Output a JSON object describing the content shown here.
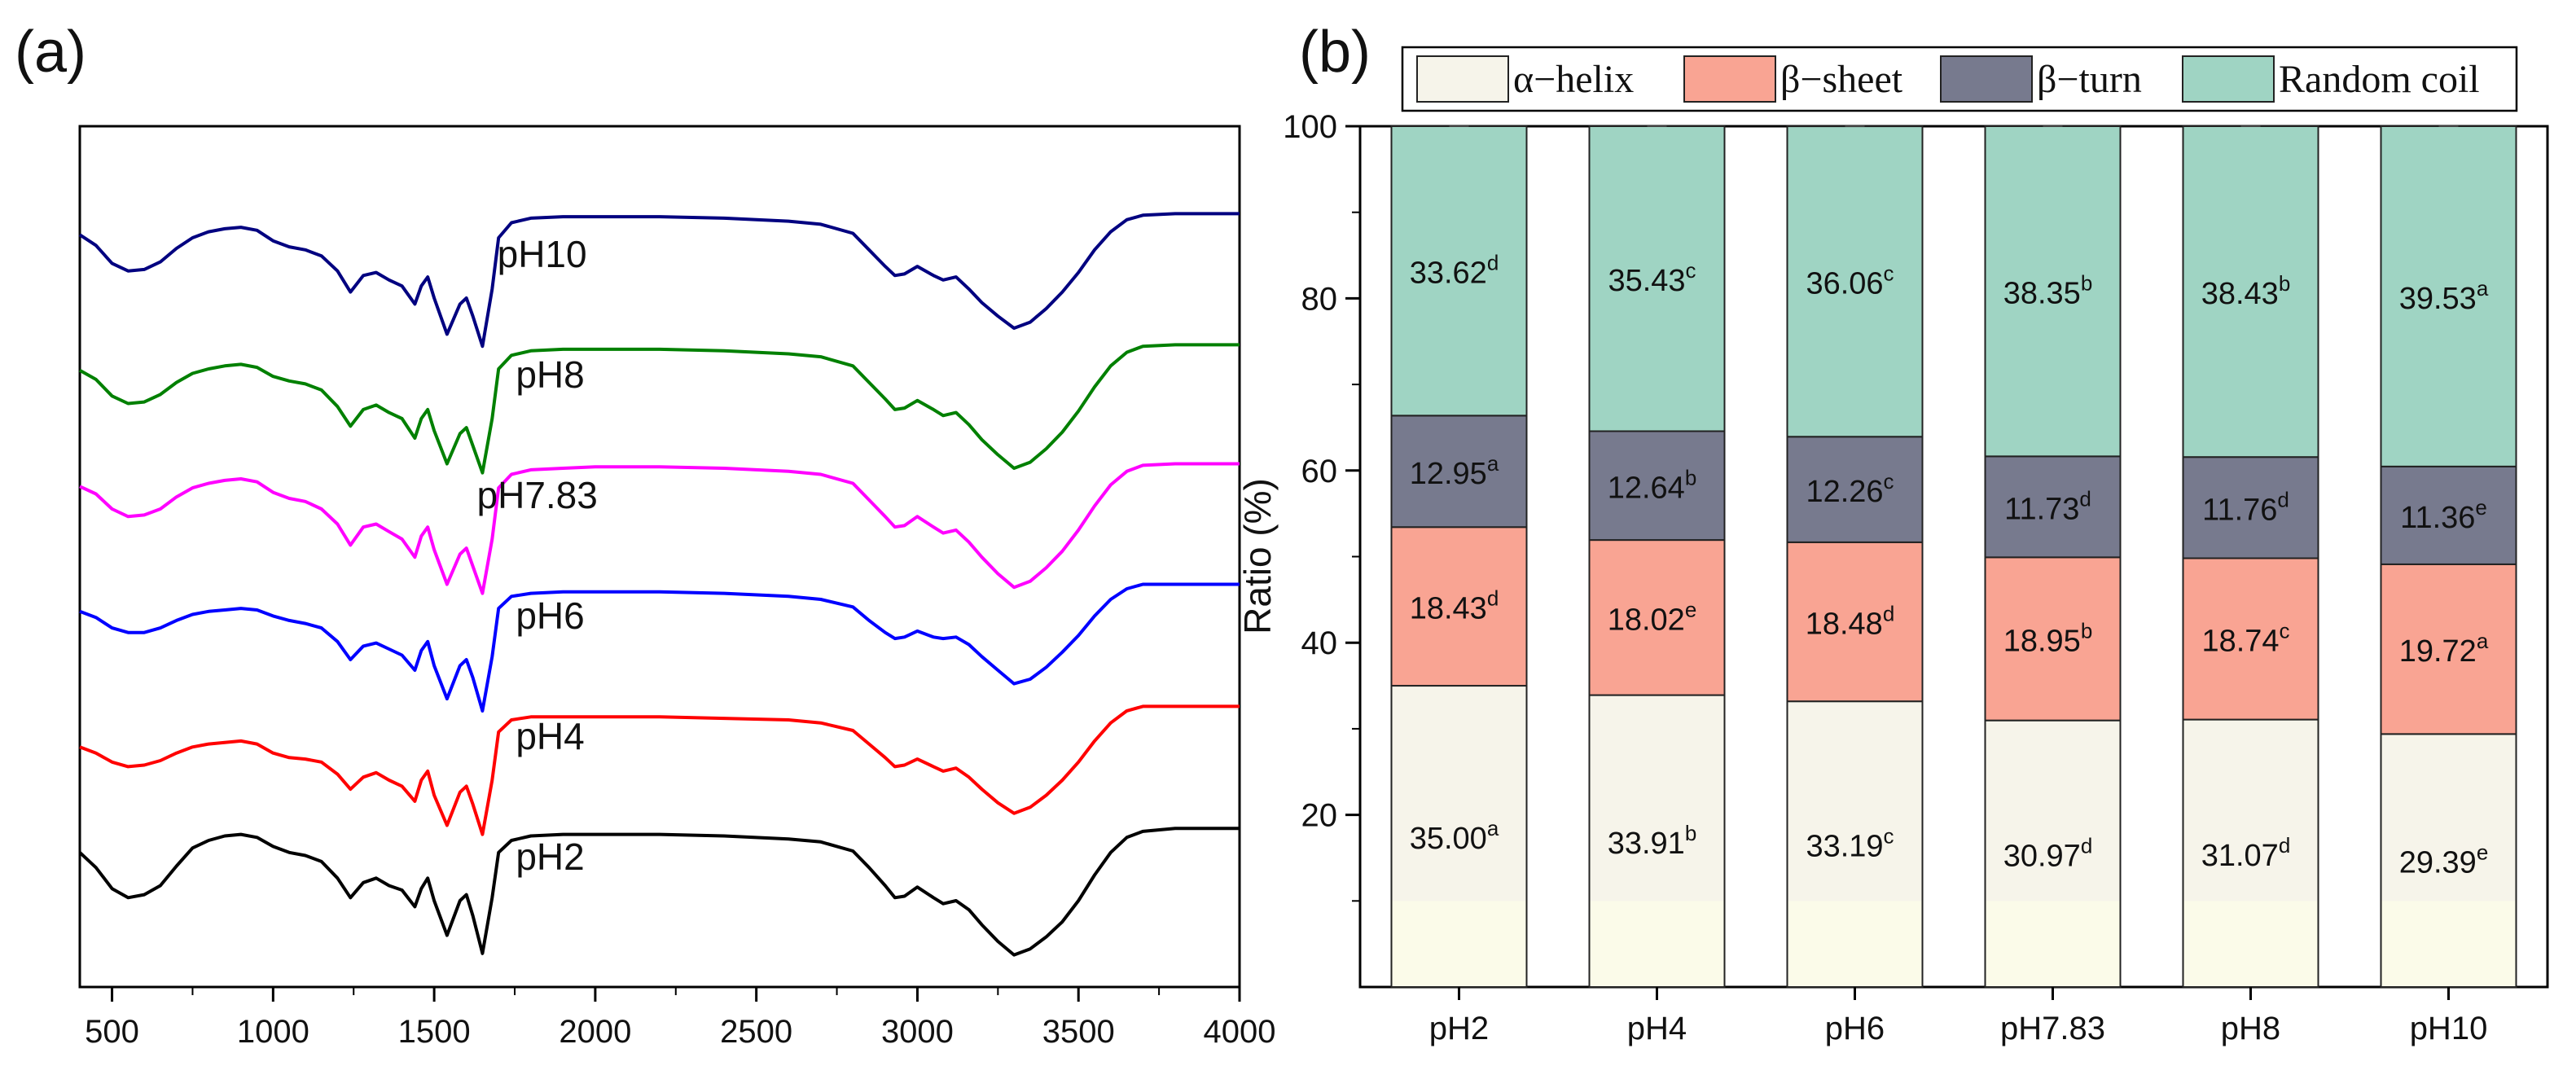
{
  "chart_data": [
    {
      "type": "line",
      "panel_label": "(a)",
      "title": "",
      "xlabel": "",
      "ylabel": "",
      "xlim": [
        400,
        4000
      ],
      "x_ticks": [
        500,
        1000,
        1500,
        2000,
        2500,
        3000,
        3500,
        4000
      ],
      "y_ticks_shown": false,
      "description_note": "FTIR spectra stacked with vertical offsets; values are normalized transmittance (0-1) read from the curve shapes",
      "baseline_offsets": {
        "pH2": 0.0,
        "pH4": 1.0,
        "pH6": 2.0,
        "pH7.83": 3.0,
        "pH8": 4.0,
        "pH10": 5.0
      },
      "x": [
        400,
        450,
        500,
        550,
        600,
        650,
        700,
        750,
        800,
        850,
        900,
        950,
        1000,
        1050,
        1100,
        1150,
        1200,
        1240,
        1280,
        1320,
        1360,
        1400,
        1440,
        1460,
        1480,
        1500,
        1540,
        1580,
        1600,
        1620,
        1650,
        1680,
        1700,
        1740,
        1800,
        1900,
        2000,
        2200,
        2400,
        2600,
        2700,
        2800,
        2850,
        2900,
        2930,
        2960,
        3000,
        3050,
        3080,
        3120,
        3160,
        3200,
        3250,
        3300,
        3350,
        3400,
        3450,
        3500,
        3550,
        3600,
        3650,
        3700,
        3800,
        3900,
        4000
      ],
      "series": [
        {
          "name": "pH2",
          "label": "pH2",
          "color": "#000000",
          "values": [
            0.72,
            0.62,
            0.48,
            0.42,
            0.44,
            0.5,
            0.63,
            0.75,
            0.8,
            0.83,
            0.84,
            0.82,
            0.76,
            0.72,
            0.7,
            0.66,
            0.55,
            0.42,
            0.52,
            0.55,
            0.5,
            0.47,
            0.36,
            0.48,
            0.55,
            0.4,
            0.17,
            0.4,
            0.44,
            0.3,
            0.05,
            0.42,
            0.72,
            0.8,
            0.83,
            0.84,
            0.84,
            0.84,
            0.83,
            0.81,
            0.79,
            0.73,
            0.62,
            0.5,
            0.42,
            0.43,
            0.49,
            0.42,
            0.38,
            0.4,
            0.34,
            0.24,
            0.13,
            0.04,
            0.08,
            0.16,
            0.26,
            0.4,
            0.57,
            0.72,
            0.82,
            0.86,
            0.88,
            0.88,
            0.88
          ]
        },
        {
          "name": "pH4",
          "label": "pH4",
          "color": "#ff0000",
          "values": [
            0.62,
            0.58,
            0.52,
            0.49,
            0.5,
            0.53,
            0.58,
            0.62,
            0.64,
            0.65,
            0.66,
            0.64,
            0.58,
            0.55,
            0.54,
            0.52,
            0.44,
            0.34,
            0.42,
            0.45,
            0.4,
            0.36,
            0.26,
            0.4,
            0.46,
            0.3,
            0.1,
            0.32,
            0.36,
            0.24,
            0.04,
            0.4,
            0.72,
            0.8,
            0.82,
            0.82,
            0.82,
            0.82,
            0.81,
            0.8,
            0.78,
            0.73,
            0.64,
            0.55,
            0.49,
            0.5,
            0.54,
            0.49,
            0.46,
            0.48,
            0.42,
            0.34,
            0.25,
            0.18,
            0.22,
            0.3,
            0.4,
            0.52,
            0.66,
            0.78,
            0.86,
            0.89,
            0.89,
            0.89,
            0.89
          ]
        },
        {
          "name": "pH6",
          "label": "pH6",
          "color": "#0000ff",
          "values": [
            0.72,
            0.68,
            0.61,
            0.58,
            0.58,
            0.61,
            0.66,
            0.7,
            0.72,
            0.73,
            0.74,
            0.73,
            0.69,
            0.66,
            0.64,
            0.61,
            0.52,
            0.4,
            0.49,
            0.51,
            0.47,
            0.43,
            0.33,
            0.46,
            0.52,
            0.36,
            0.14,
            0.36,
            0.4,
            0.28,
            0.06,
            0.42,
            0.74,
            0.82,
            0.84,
            0.85,
            0.85,
            0.85,
            0.84,
            0.82,
            0.8,
            0.75,
            0.66,
            0.58,
            0.54,
            0.55,
            0.59,
            0.55,
            0.54,
            0.55,
            0.5,
            0.42,
            0.33,
            0.24,
            0.27,
            0.35,
            0.45,
            0.56,
            0.69,
            0.8,
            0.87,
            0.9,
            0.9,
            0.9,
            0.9
          ]
        },
        {
          "name": "pH7.83",
          "label": "pH7.83",
          "color": "#ff00ff",
          "values": [
            0.75,
            0.7,
            0.6,
            0.55,
            0.56,
            0.6,
            0.68,
            0.74,
            0.77,
            0.79,
            0.8,
            0.78,
            0.71,
            0.67,
            0.65,
            0.6,
            0.5,
            0.36,
            0.48,
            0.5,
            0.45,
            0.4,
            0.28,
            0.42,
            0.48,
            0.33,
            0.1,
            0.3,
            0.34,
            0.22,
            0.04,
            0.4,
            0.74,
            0.83,
            0.86,
            0.87,
            0.88,
            0.88,
            0.87,
            0.85,
            0.83,
            0.77,
            0.66,
            0.55,
            0.48,
            0.49,
            0.55,
            0.48,
            0.44,
            0.46,
            0.38,
            0.28,
            0.17,
            0.08,
            0.12,
            0.21,
            0.32,
            0.46,
            0.62,
            0.76,
            0.85,
            0.89,
            0.9,
            0.9,
            0.9
          ]
        },
        {
          "name": "pH8",
          "label": "pH8",
          "color": "#008000",
          "values": [
            0.72,
            0.66,
            0.55,
            0.5,
            0.51,
            0.56,
            0.64,
            0.7,
            0.73,
            0.75,
            0.76,
            0.74,
            0.68,
            0.65,
            0.63,
            0.59,
            0.48,
            0.35,
            0.46,
            0.49,
            0.44,
            0.4,
            0.27,
            0.4,
            0.46,
            0.32,
            0.1,
            0.3,
            0.34,
            0.22,
            0.04,
            0.4,
            0.73,
            0.82,
            0.85,
            0.86,
            0.86,
            0.86,
            0.85,
            0.83,
            0.81,
            0.75,
            0.64,
            0.53,
            0.46,
            0.47,
            0.52,
            0.46,
            0.42,
            0.44,
            0.36,
            0.26,
            0.16,
            0.07,
            0.11,
            0.2,
            0.31,
            0.45,
            0.61,
            0.75,
            0.84,
            0.88,
            0.89,
            0.89,
            0.89
          ]
        },
        {
          "name": "pH10",
          "label": "pH10",
          "color": "#000080",
          "values": [
            0.82,
            0.75,
            0.63,
            0.58,
            0.59,
            0.64,
            0.73,
            0.8,
            0.84,
            0.86,
            0.87,
            0.85,
            0.78,
            0.74,
            0.72,
            0.68,
            0.58,
            0.44,
            0.55,
            0.57,
            0.52,
            0.48,
            0.36,
            0.48,
            0.54,
            0.4,
            0.16,
            0.36,
            0.4,
            0.28,
            0.08,
            0.46,
            0.8,
            0.9,
            0.93,
            0.94,
            0.94,
            0.94,
            0.93,
            0.91,
            0.89,
            0.83,
            0.72,
            0.61,
            0.55,
            0.56,
            0.61,
            0.55,
            0.52,
            0.54,
            0.46,
            0.37,
            0.28,
            0.2,
            0.24,
            0.33,
            0.44,
            0.57,
            0.72,
            0.84,
            0.92,
            0.95,
            0.96,
            0.96,
            0.96
          ]
        }
      ]
    },
    {
      "type": "bar",
      "stacked": true,
      "panel_label": "(b)",
      "title": "",
      "xlabel": "",
      "ylabel": "Ratio (%)",
      "ylim": [
        0,
        100
      ],
      "y_ticks": [
        20,
        40,
        60,
        80,
        100
      ],
      "legend_position": "top",
      "categories": [
        "pH2",
        "pH4",
        "pH6",
        "pH7.83",
        "pH8",
        "pH10"
      ],
      "series": [
        {
          "name": "α−helix",
          "color": "#f6f4ea",
          "values": [
            35.0,
            33.91,
            33.19,
            30.97,
            31.07,
            29.39
          ],
          "labels": [
            "35.00",
            "33.91",
            "33.19",
            "30.97",
            "31.07",
            "29.39"
          ],
          "sig": [
            "a",
            "b",
            "c",
            "d",
            "d",
            "e"
          ]
        },
        {
          "name": "β−sheet",
          "color": "#f9a493",
          "values": [
            18.43,
            18.02,
            18.48,
            18.95,
            18.74,
            19.72
          ],
          "labels": [
            "18.43",
            "18.02",
            "18.48",
            "18.95",
            "18.74",
            "19.72"
          ],
          "sig": [
            "d",
            "e",
            "d",
            "b",
            "c",
            "a"
          ]
        },
        {
          "name": "β−turn",
          "color": "#777a8e",
          "values": [
            12.95,
            12.64,
            12.26,
            11.73,
            11.76,
            11.36
          ],
          "labels": [
            "12.95",
            "12.64",
            "12.26",
            "11.73",
            "11.76",
            "11.36"
          ],
          "sig": [
            "a",
            "b",
            "c",
            "d",
            "d",
            "e"
          ]
        },
        {
          "name": "Random coil",
          "color": "#9fd4c3",
          "values": [
            33.62,
            35.43,
            36.06,
            38.35,
            38.43,
            39.53
          ],
          "labels": [
            "33.62",
            "35.43",
            "36.06",
            "38.35",
            "38.43",
            "39.53"
          ],
          "sig": [
            "d",
            "c",
            "c",
            "b",
            "b",
            "a"
          ]
        }
      ]
    }
  ]
}
